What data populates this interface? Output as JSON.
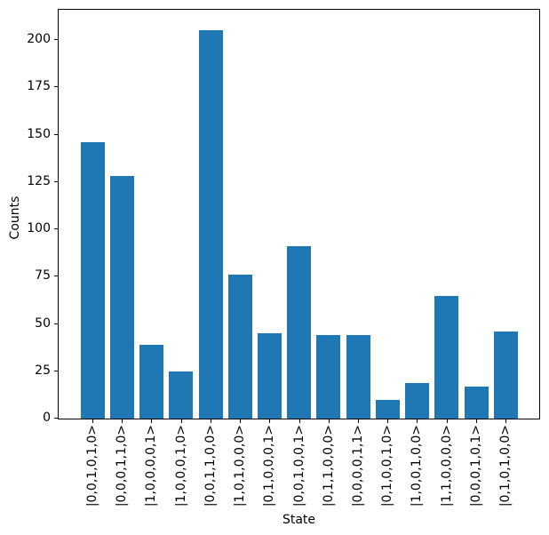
{
  "figure": {
    "background": "#ffffff",
    "bar_color": "#1f77b4",
    "axis_color": "#000000",
    "text_color": "#000000"
  },
  "chart_data": {
    "type": "bar",
    "title": "",
    "xlabel": "State",
    "ylabel": "Counts",
    "categories": [
      "|0,0,1,0,1,0>",
      "|0,0,0,1,1,0>",
      "|1,0,0,0,0,1>",
      "|1,0,0,0,1,0>",
      "|0,0,1,1,0,0>",
      "|1,0,1,0,0,0>",
      "|0,1,0,0,0,1>",
      "|0,0,1,0,0,1>",
      "|0,1,1,0,0,0>",
      "|0,0,0,0,1,1>",
      "|0,1,0,0,1,0>",
      "|1,0,0,1,0,0>",
      "|1,1,0,0,0,0>",
      "|0,0,0,1,0,1>",
      "|0,1,0,1,0,0>"
    ],
    "values": [
      146,
      128,
      39,
      25,
      205,
      76,
      45,
      91,
      44,
      44,
      10,
      19,
      65,
      17,
      46
    ],
    "yticks": [
      0,
      25,
      50,
      75,
      100,
      125,
      150,
      175,
      200
    ],
    "ylim": [
      0,
      216
    ],
    "grid": false,
    "legend": "none",
    "bar_label_rotation_deg": 90
  }
}
